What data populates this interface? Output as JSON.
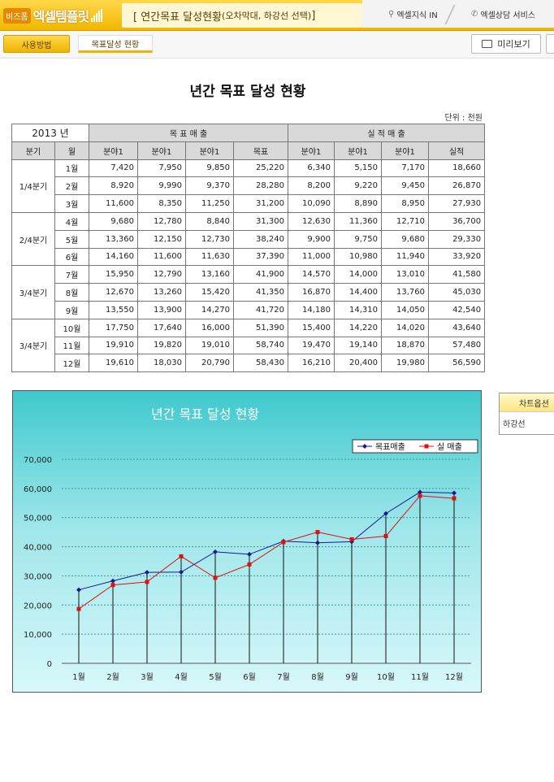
{
  "header": {
    "brand_small": "비즈폼",
    "brand_name": "엑셀템플릿",
    "page_title": "[ 연간목표 달성현황",
    "page_subtitle": "(오차막대, 하강선 선택)",
    "page_title_end": " ]",
    "tabs": [
      {
        "label": "엑셀지식 IN",
        "icon": "bulb-icon"
      },
      {
        "label": "엑셀상담 서비스",
        "icon": "phone-icon"
      }
    ]
  },
  "toolbar": {
    "usage_label": "사용방법",
    "active_tab_label": "목표달성 현황",
    "preview_label": "미리보기"
  },
  "sheet": {
    "title": "년간 목표 달성 현황",
    "unit": "단위 : 천원",
    "year_label": "2013 년",
    "group_target": "목 표 매 출",
    "group_actual": "실 적 매 출",
    "col_quarter": "분기",
    "col_month": "월",
    "col_field1": "분야1",
    "col_field2": "분야1",
    "col_field3": "분야1",
    "col_target_total": "목표",
    "col_actual_total": "실적",
    "quarters": [
      {
        "label": "1/4분기",
        "rows": [
          {
            "month": "1월",
            "t": [
              "7,420",
              "7,950",
              "9,850",
              "25,220"
            ],
            "a": [
              "6,340",
              "5,150",
              "7,170",
              "18,660"
            ]
          },
          {
            "month": "2월",
            "t": [
              "8,920",
              "9,990",
              "9,370",
              "28,280"
            ],
            "a": [
              "8,200",
              "9,220",
              "9,450",
              "26,870"
            ]
          },
          {
            "month": "3월",
            "t": [
              "11,600",
              "8,350",
              "11,250",
              "31,200"
            ],
            "a": [
              "10,090",
              "8,890",
              "8,950",
              "27,930"
            ]
          }
        ]
      },
      {
        "label": "2/4분기",
        "rows": [
          {
            "month": "4월",
            "t": [
              "9,680",
              "12,780",
              "8,840",
              "31,300"
            ],
            "a": [
              "12,630",
              "11,360",
              "12,710",
              "36,700"
            ]
          },
          {
            "month": "5월",
            "t": [
              "13,360",
              "12,150",
              "12,730",
              "38,240"
            ],
            "a": [
              "9,900",
              "9,750",
              "9,680",
              "29,330"
            ]
          },
          {
            "month": "6월",
            "t": [
              "14,160",
              "11,600",
              "11,630",
              "37,390"
            ],
            "a": [
              "11,000",
              "10,980",
              "11,940",
              "33,920"
            ]
          }
        ]
      },
      {
        "label": "3/4분기",
        "rows": [
          {
            "month": "7월",
            "t": [
              "15,950",
              "12,790",
              "13,160",
              "41,900"
            ],
            "a": [
              "14,570",
              "14,000",
              "13,010",
              "41,580"
            ]
          },
          {
            "month": "8월",
            "t": [
              "12,670",
              "13,260",
              "15,420",
              "41,350"
            ],
            "a": [
              "16,870",
              "14,400",
              "13,760",
              "45,030"
            ]
          },
          {
            "month": "9월",
            "t": [
              "13,550",
              "13,900",
              "14,270",
              "41,720"
            ],
            "a": [
              "14,180",
              "14,310",
              "14,050",
              "42,540"
            ]
          }
        ]
      },
      {
        "label": "3/4분기",
        "rows": [
          {
            "month": "10월",
            "t": [
              "17,750",
              "17,640",
              "16,000",
              "51,390"
            ],
            "a": [
              "15,400",
              "14,220",
              "14,020",
              "43,640"
            ]
          },
          {
            "month": "11월",
            "t": [
              "19,910",
              "19,820",
              "19,010",
              "58,740"
            ],
            "a": [
              "19,470",
              "19,140",
              "18,870",
              "57,480"
            ]
          },
          {
            "month": "12월",
            "t": [
              "19,610",
              "18,030",
              "20,790",
              "58,430"
            ],
            "a": [
              "16,210",
              "20,400",
              "19,980",
              "56,590"
            ]
          }
        ]
      }
    ]
  },
  "side_panel": {
    "title": "차트옵션",
    "item": "하강선"
  },
  "chart_data": {
    "type": "line",
    "title": "년간 목표 달성 현황",
    "categories": [
      "1월",
      "2월",
      "3월",
      "4월",
      "5월",
      "6월",
      "7월",
      "8월",
      "9월",
      "10월",
      "11월",
      "12월"
    ],
    "series": [
      {
        "name": "목표매출",
        "color": "#1a1a8c",
        "marker": "diamond",
        "values": [
          25220,
          28280,
          31200,
          31300,
          38240,
          37390,
          41900,
          41350,
          41720,
          51390,
          58740,
          58430
        ]
      },
      {
        "name": "실 매출",
        "color": "#e01010",
        "marker": "square",
        "values": [
          18660,
          26870,
          27930,
          36700,
          29330,
          33920,
          41580,
          45030,
          42540,
          43640,
          57480,
          56590
        ]
      }
    ],
    "ylim": [
      0,
      70000
    ],
    "yticks": [
      "0",
      "10,000",
      "20,000",
      "30,000",
      "40,000",
      "50,000",
      "60,000",
      "70,000"
    ],
    "grid": true,
    "drop_lines": true,
    "legend_position": "top-right"
  }
}
